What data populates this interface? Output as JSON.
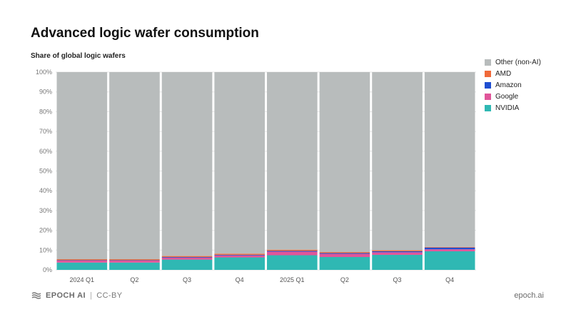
{
  "chart_data": {
    "type": "bar",
    "stacked": true,
    "title": "Advanced logic wafer consumption",
    "subtitle": "Share of global logic wafers",
    "categories": [
      "2024 Q1",
      "Q2",
      "Q3",
      "Q4",
      "2025 Q1",
      "Q2",
      "Q3",
      "Q4"
    ],
    "ylim": [
      0,
      100
    ],
    "yticks": [
      "0%",
      "10%",
      "20%",
      "30%",
      "40%",
      "50%",
      "60%",
      "70%",
      "80%",
      "90%",
      "100%"
    ],
    "grid": true,
    "legend_position": "right",
    "series": [
      {
        "name": "NVIDIA",
        "color": "#2fb8b3",
        "values": [
          3.7,
          3.7,
          5.2,
          6.3,
          7.4,
          6.5,
          7.6,
          9.4
        ]
      },
      {
        "name": "Google",
        "color": "#e0559a",
        "values": [
          1.0,
          1.0,
          1.0,
          1.0,
          1.8,
          1.6,
          1.3,
          1.0
        ]
      },
      {
        "name": "Amazon",
        "color": "#1f4fd1",
        "values": [
          0.2,
          0.2,
          0.3,
          0.3,
          0.4,
          0.4,
          0.5,
          0.9
        ]
      },
      {
        "name": "AMD",
        "color": "#f06a3a",
        "values": [
          0.5,
          0.5,
          0.5,
          0.6,
          0.6,
          0.5,
          0.5,
          0.3
        ]
      },
      {
        "name": "Other (non-AI)",
        "color": "#b8bcbc",
        "values": [
          94.6,
          94.6,
          93.0,
          91.8,
          89.8,
          91.0,
          90.1,
          88.4
        ]
      }
    ]
  },
  "legend": [
    {
      "label": "Other (non-AI)",
      "color": "#b8bcbc"
    },
    {
      "label": "AMD",
      "color": "#f06a3a"
    },
    {
      "label": "Amazon",
      "color": "#1f4fd1"
    },
    {
      "label": "Google",
      "color": "#e0559a"
    },
    {
      "label": "NVIDIA",
      "color": "#2fb8b3"
    }
  ],
  "footer": {
    "brand": "EPOCH AI",
    "separator": "|",
    "license": "CC-BY",
    "site": "epoch.ai"
  }
}
